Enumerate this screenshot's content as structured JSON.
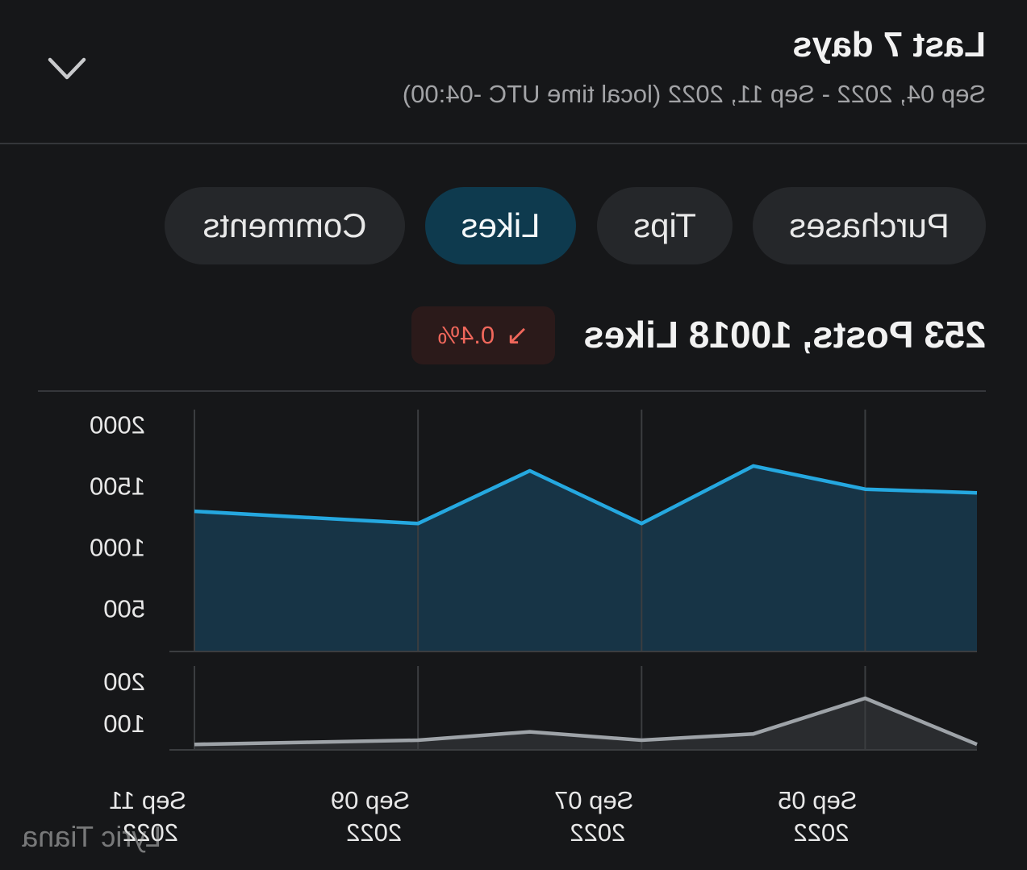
{
  "header": {
    "title": "Last 7 days",
    "subtitle": "Sep 04, 2022 - Sep 11, 2022 (local time UTC -04:00)",
    "toggle_icon": "chevron-down-icon"
  },
  "tabs": [
    {
      "label": "Purchases",
      "active": false
    },
    {
      "label": "Tips",
      "active": false
    },
    {
      "label": "Likes",
      "active": true
    },
    {
      "label": "Comments",
      "active": false
    }
  ],
  "summary": {
    "text": "253 Posts, 10018 Likes",
    "change": {
      "icon": "arrow-down-right-icon",
      "arrow": "↘",
      "value": "0.4%"
    }
  },
  "colors": {
    "background": "#161719",
    "active_tab": "#0e3a4e",
    "likes_line": "#25a8e0",
    "likes_fill": "#173446",
    "posts_line": "#9ea3a8",
    "posts_fill": "#2a2c2f",
    "grid": "#3b3d40",
    "negative": "#f0675b"
  },
  "chart_data": [
    {
      "type": "area",
      "x": [
        "Sep 04",
        "Sep 05",
        "Sep 06",
        "Sep 07",
        "Sep 08",
        "Sep 09",
        "Sep 10",
        "Sep 11"
      ],
      "series": [
        {
          "values": [
            1460,
            1490,
            1680,
            1210,
            1640,
            1210,
            1260,
            1310
          ]
        }
      ],
      "ylim": [
        165,
        2140
      ],
      "yticks": [
        500,
        1000,
        1500,
        2000
      ],
      "grid": "vertical"
    },
    {
      "type": "area",
      "x": [
        "Sep 04",
        "Sep 05",
        "Sep 06",
        "Sep 07",
        "Sep 08",
        "Sep 09",
        "Sep 10",
        "Sep 11"
      ],
      "series": [
        {
          "values": [
            55,
            165,
            80,
            65,
            85,
            65,
            60,
            55
          ]
        }
      ],
      "ylim": [
        42,
        242
      ],
      "yticks": [
        100,
        200
      ],
      "grid": "vertical",
      "xticks": [
        {
          "at": "Sep 05",
          "label": "Sep 05",
          "year": "2022"
        },
        {
          "at": "Sep 07",
          "label": "Sep 07",
          "year": "2022"
        },
        {
          "at": "Sep 09",
          "label": "Sep 09",
          "year": "2022"
        },
        {
          "at": "Sep 11",
          "label": "Sep 11",
          "year": "2022"
        }
      ]
    }
  ],
  "watermark": "Lyric Tiana"
}
